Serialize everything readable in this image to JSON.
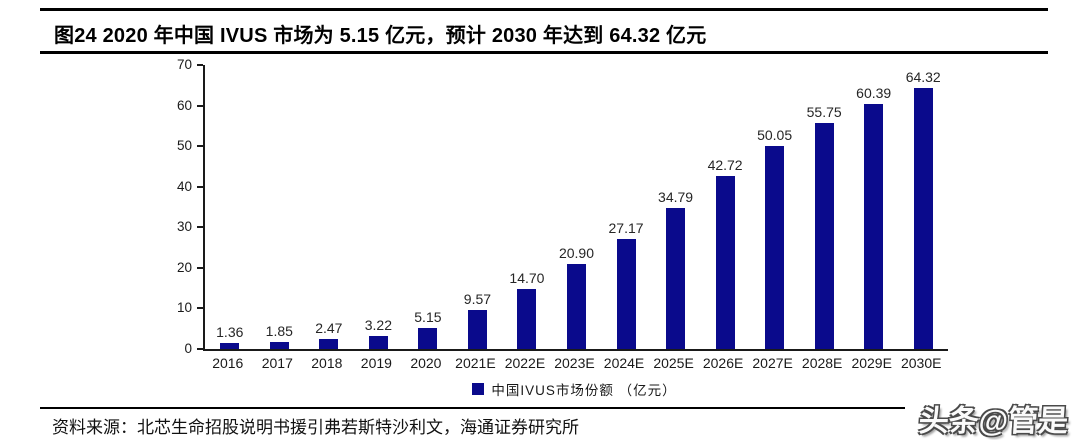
{
  "title": {
    "text": "图24 2020 年中国 IVUS 市场为 5.15 亿元，预计 2030 年达到 64.32 亿元"
  },
  "chart_data": {
    "type": "bar",
    "title": "2020 年中国 IVUS 市场为 5.15 亿元，预计 2030 年达到 64.32 亿元",
    "categories": [
      "2016",
      "2017",
      "2018",
      "2019",
      "2020",
      "2021E",
      "2022E",
      "2023E",
      "2024E",
      "2025E",
      "2026E",
      "2027E",
      "2028E",
      "2029E",
      "2030E"
    ],
    "values": [
      1.36,
      1.85,
      2.47,
      3.22,
      5.15,
      9.57,
      14.7,
      20.9,
      27.17,
      34.79,
      42.72,
      50.05,
      55.75,
      60.39,
      64.32
    ],
    "legend": "中国IVUS市场份额 （亿元）",
    "xlabel": "",
    "ylabel": "",
    "ylim": [
      0,
      70
    ],
    "yticks": [
      0,
      10,
      20,
      30,
      40,
      50,
      60,
      70
    ],
    "grid": false,
    "legend_position": "bottom",
    "bar_color": "#0a0a8c",
    "axis_color": "#1a1a1a",
    "value_label_decimals": 2
  },
  "footer": {
    "source": "资料来源：北芯生命招股说明书援引弗若斯特沙利文，海通证券研究所"
  },
  "watermark": {
    "text": "头条@管是"
  }
}
